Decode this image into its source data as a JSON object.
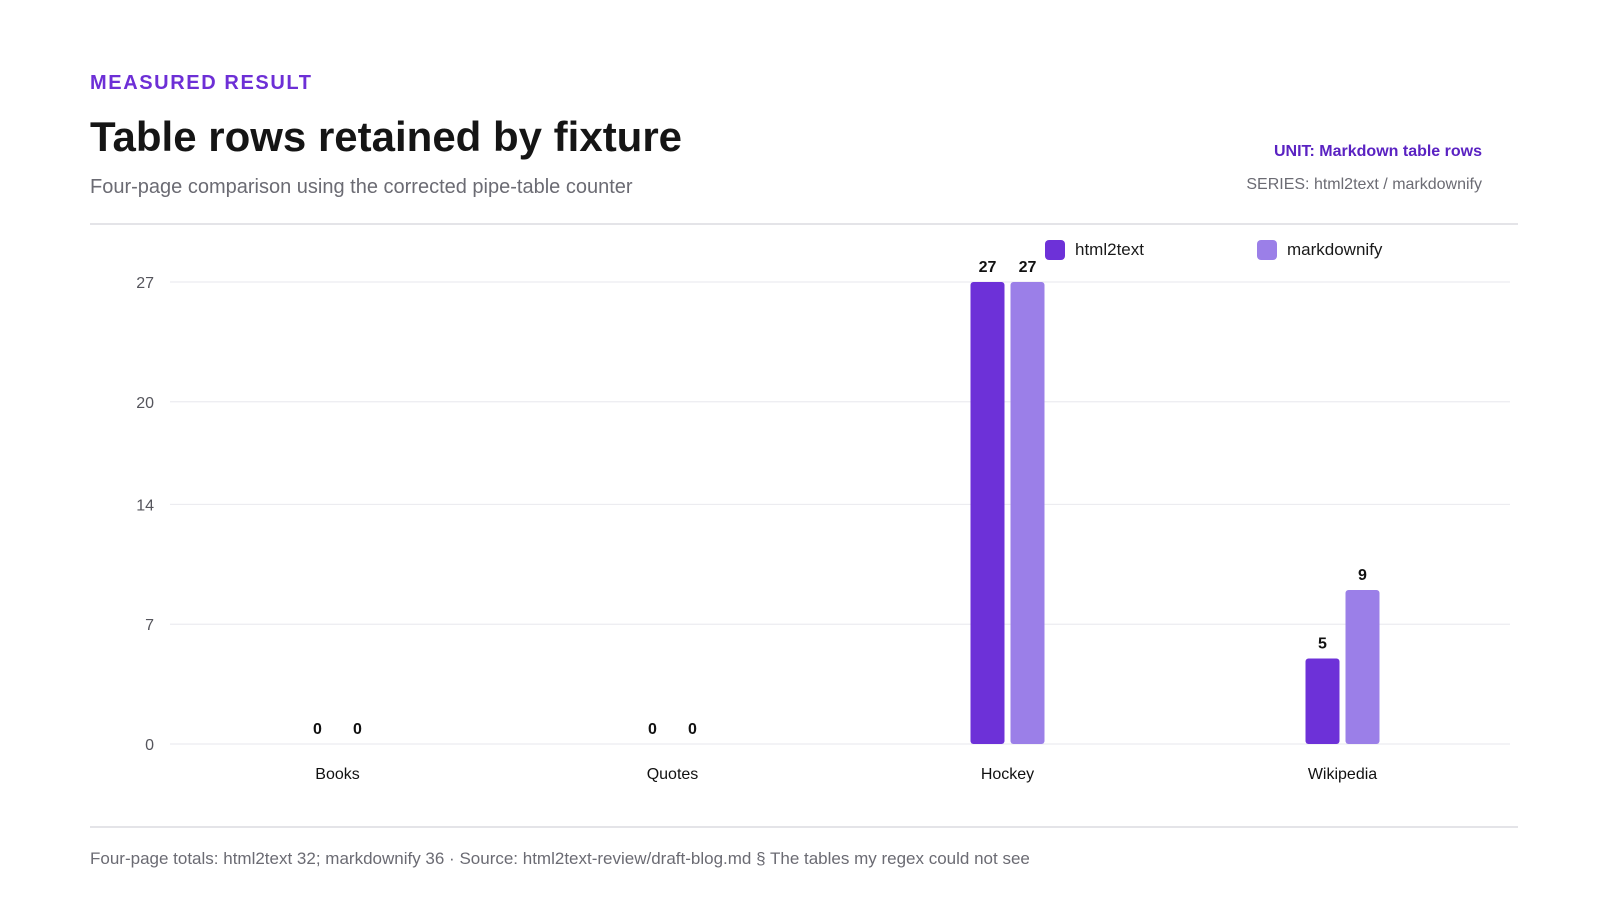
{
  "header": {
    "eyebrow": "MEASURED RESULT",
    "title": "Table rows retained by fixture",
    "subtitle": "Four-page comparison using the corrected pipe-table counter",
    "unit": "UNIT: Markdown table rows",
    "series": "SERIES: html2text / markdownify"
  },
  "footer": {
    "note": "Four-page totals: html2text 32; markdownify 36 · Source: html2text-review/draft-blog.md § The tables my regex could not see"
  },
  "colors": {
    "accent": "#6d2fd6",
    "html2text": "#6d31d8",
    "markdownify": "#9b7fe8"
  },
  "chart_data": {
    "type": "bar",
    "categories": [
      "Books",
      "Quotes",
      "Hockey",
      "Wikipedia"
    ],
    "series": [
      {
        "name": "html2text",
        "values": [
          0,
          0,
          27,
          5
        ]
      },
      {
        "name": "markdownify",
        "values": [
          0,
          0,
          27,
          9
        ]
      }
    ],
    "yticks": [
      0,
      7,
      14,
      20,
      27
    ],
    "ylim": [
      0,
      27
    ],
    "grid": true,
    "legend": "top-right"
  }
}
